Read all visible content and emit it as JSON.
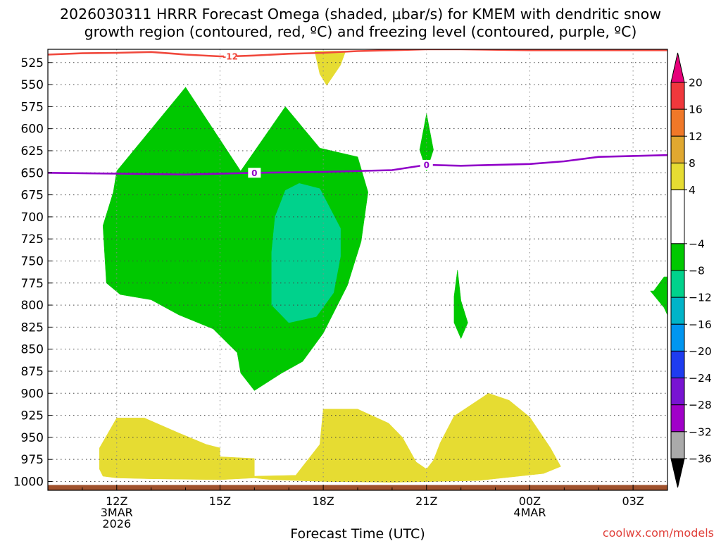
{
  "chart_data": {
    "type": "time-height cross-section",
    "title_line1": "2026030311 HRRR Forecast Omega (shaded, μbar/s) for KMEM with dendritic snow",
    "title_line2": "growth region (contoured, red, ºC) and freezing level (contoured, purple, ºC)",
    "xlabel": "Forecast Time (UTC)",
    "credit": "coolwx.com/models",
    "x_range_hours": [
      10.0,
      28.0
    ],
    "x_ticks": [
      {
        "hour": 12,
        "labels": [
          "12Z",
          "3MAR",
          "2026"
        ]
      },
      {
        "hour": 15,
        "labels": [
          "15Z"
        ]
      },
      {
        "hour": 18,
        "labels": [
          "18Z"
        ]
      },
      {
        "hour": 21,
        "labels": [
          "21Z"
        ]
      },
      {
        "hour": 24,
        "labels": [
          "00Z",
          "4MAR"
        ]
      },
      {
        "hour": 27,
        "labels": [
          "03Z"
        ]
      }
    ],
    "y_label_unit": "hPa",
    "y_range": [
      1010,
      510
    ],
    "y_ticks": [
      "525",
      "550",
      "575",
      "600",
      "625",
      "650",
      "675",
      "700",
      "725",
      "750",
      "775",
      "800",
      "825",
      "850",
      "875",
      "900",
      "925",
      "950",
      "975",
      "1000"
    ],
    "colorbar": {
      "ticks": [
        "20",
        "16",
        "12",
        "8",
        "4",
        "−4",
        "−8",
        "−12",
        "−16",
        "−20",
        "−24",
        "−28",
        "−32",
        "−36"
      ],
      "segments": [
        {
          "from": 16,
          "to": 20,
          "color": "#f0383c"
        },
        {
          "from": 12,
          "to": 16,
          "color": "#f07828"
        },
        {
          "from": 8,
          "to": 12,
          "color": "#e0a830"
        },
        {
          "from": 4,
          "to": 8,
          "color": "#e6dc32"
        },
        {
          "from": -4,
          "to": 4,
          "color": "#ffffff"
        },
        {
          "from": -8,
          "to": -4,
          "color": "#00c800"
        },
        {
          "from": -12,
          "to": -8,
          "color": "#00d28c"
        },
        {
          "from": -16,
          "to": -12,
          "color": "#00b4c8"
        },
        {
          "from": -20,
          "to": -16,
          "color": "#0096f0"
        },
        {
          "from": -24,
          "to": -20,
          "color": "#1e3cf0"
        },
        {
          "from": -28,
          "to": -24,
          "color": "#7814d2"
        },
        {
          "from": -32,
          "to": -28,
          "color": "#a000c8"
        },
        {
          "from": -36,
          "to": -32,
          "color": "#aaaaaa"
        }
      ],
      "top_arrow_color": "#e6007a",
      "bottom_arrow_color": "#000000"
    },
    "terrain": {
      "color": "#a0522d",
      "top_hPa": 1004
    },
    "shaded_regions": [
      {
        "name": "green-main-west",
        "color": "#00c800",
        "points": [
          [
            12,
            648
          ],
          [
            14,
            553
          ],
          [
            15.6,
            648
          ],
          [
            16.9,
            575
          ],
          [
            17.9,
            622
          ],
          [
            19.0,
            632
          ],
          [
            19.3,
            672
          ],
          [
            19.1,
            728
          ],
          [
            18.7,
            778
          ],
          [
            18.0,
            832
          ],
          [
            17.4,
            864
          ],
          [
            16.8,
            877
          ],
          [
            16.0,
            897
          ],
          [
            15.6,
            877
          ],
          [
            15.5,
            854
          ],
          [
            14.8,
            827
          ],
          [
            13.8,
            811
          ],
          [
            13.0,
            794
          ],
          [
            12.1,
            788
          ],
          [
            11.7,
            775
          ],
          [
            11.6,
            710
          ],
          [
            11.9,
            672
          ]
        ]
      },
      {
        "name": "teal-core",
        "color": "#00d28c",
        "points": [
          [
            16.6,
            700
          ],
          [
            16.9,
            670
          ],
          [
            17.3,
            662
          ],
          [
            17.9,
            668
          ],
          [
            18.5,
            713
          ],
          [
            18.5,
            745
          ],
          [
            18.3,
            786
          ],
          [
            17.8,
            813
          ],
          [
            17.0,
            820
          ],
          [
            16.5,
            800
          ],
          [
            16.5,
            740
          ]
        ]
      },
      {
        "name": "green-21z-upper",
        "color": "#00c800",
        "points": [
          [
            21.0,
            583
          ],
          [
            21.2,
            624
          ],
          [
            21.0,
            648
          ],
          [
            20.8,
            624
          ]
        ]
      },
      {
        "name": "green-22z-mid",
        "color": "#00c800",
        "points": [
          [
            21.9,
            760
          ],
          [
            22.0,
            795
          ],
          [
            22.2,
            820
          ],
          [
            22.0,
            838
          ],
          [
            21.8,
            820
          ],
          [
            21.8,
            790
          ]
        ]
      },
      {
        "name": "green-east-patch",
        "color": "#00c800",
        "points": [
          [
            27.6,
            784
          ],
          [
            27.9,
            768
          ],
          [
            28.4,
            768
          ],
          [
            28.5,
            792
          ],
          [
            28.1,
            820
          ],
          [
            27.9,
            803
          ],
          [
            27.5,
            784
          ]
        ]
      },
      {
        "name": "green-east-column",
        "color": "#00c800",
        "points": [
          [
            29.5,
            512
          ],
          [
            29.9,
            512
          ],
          [
            30.1,
            645
          ],
          [
            29.8,
            755
          ],
          [
            29.7,
            755
          ],
          [
            29.55,
            640
          ]
        ]
      },
      {
        "name": "yellow-top-18z",
        "color": "#e6dc32",
        "points": [
          [
            17.75,
            512
          ],
          [
            18.65,
            512
          ],
          [
            18.5,
            528
          ],
          [
            18.1,
            551
          ],
          [
            17.9,
            538
          ]
        ]
      },
      {
        "name": "yellow-lower-west",
        "color": "#e6dc32",
        "points": [
          [
            11.5,
            986
          ],
          [
            11.5,
            962
          ],
          [
            12.0,
            928
          ],
          [
            12.8,
            928
          ],
          [
            13.8,
            945
          ],
          [
            14.6,
            958
          ],
          [
            15.0,
            962
          ],
          [
            15.0,
            972
          ],
          [
            16.0,
            974
          ],
          [
            16.0,
            996
          ],
          [
            15.0,
            998
          ],
          [
            13.0,
            997
          ],
          [
            12.0,
            996
          ],
          [
            11.6,
            994
          ]
        ]
      },
      {
        "name": "yellow-lower-mid",
        "color": "#e6dc32",
        "points": [
          [
            16.0,
            996
          ],
          [
            16.0,
            994
          ],
          [
            17.2,
            993
          ],
          [
            17.9,
            958
          ],
          [
            18.0,
            918
          ],
          [
            19.0,
            918
          ],
          [
            19.9,
            934
          ],
          [
            20.3,
            950
          ],
          [
            20.7,
            978
          ],
          [
            21.0,
            986
          ],
          [
            21.2,
            976
          ],
          [
            21.4,
            956
          ],
          [
            21.8,
            926
          ],
          [
            22.8,
            900
          ],
          [
            23.4,
            908
          ],
          [
            24.0,
            927
          ],
          [
            24.6,
            962
          ],
          [
            24.9,
            983
          ],
          [
            24.4,
            991
          ],
          [
            22.5,
            999
          ],
          [
            20.0,
            1001
          ],
          [
            18.0,
            1000
          ],
          [
            16.5,
            998
          ]
        ]
      },
      {
        "name": "yellow-lower-east",
        "color": "#e6dc32",
        "points": [
          [
            29.4,
            980
          ],
          [
            29.9,
            968
          ],
          [
            29.9,
            986
          ],
          [
            29.5,
            990
          ]
        ]
      }
    ],
    "contours": [
      {
        "name": "dendritic-snow-growth",
        "units": "ºC",
        "color": "#f0483c",
        "level": -12,
        "label": "-12",
        "label_at": [
          15.3,
          518
        ],
        "points": [
          [
            10,
            516
          ],
          [
            11,
            514.5
          ],
          [
            12,
            514
          ],
          [
            13,
            513
          ],
          [
            14,
            516
          ],
          [
            15,
            518
          ],
          [
            15.3,
            518
          ],
          [
            16,
            517
          ],
          [
            17,
            515
          ],
          [
            18,
            514
          ],
          [
            19,
            512
          ],
          [
            20,
            511
          ],
          [
            21,
            510
          ],
          [
            22,
            510
          ],
          [
            24,
            511
          ],
          [
            26,
            511
          ],
          [
            28,
            511
          ],
          [
            30,
            511
          ]
        ]
      },
      {
        "name": "freezing-level",
        "units": "ºC",
        "color": "#9000c8",
        "level": 0,
        "labels": [
          {
            "text": "0",
            "at": [
              16.0,
              650
            ]
          },
          {
            "text": "0",
            "at": [
              21.0,
              641
            ]
          }
        ],
        "points": [
          [
            10,
            650
          ],
          [
            12,
            651
          ],
          [
            14,
            652
          ],
          [
            16,
            650
          ],
          [
            18,
            649
          ],
          [
            20,
            647
          ],
          [
            21,
            641
          ],
          [
            22,
            642
          ],
          [
            24,
            640
          ],
          [
            25,
            637
          ],
          [
            26,
            632
          ],
          [
            28,
            630
          ],
          [
            29,
            628
          ],
          [
            30,
            627
          ]
        ]
      }
    ]
  }
}
